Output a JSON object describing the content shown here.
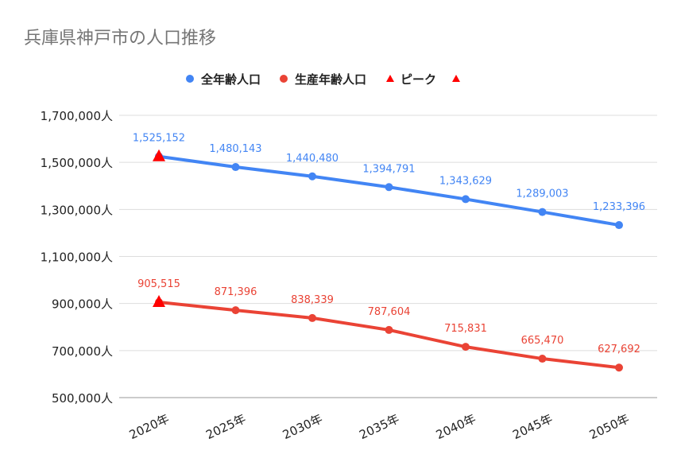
{
  "chart_data": {
    "type": "line",
    "title": "兵庫県神戸市の人口推移",
    "categories": [
      "2020年",
      "2025年",
      "2030年",
      "2035年",
      "2040年",
      "2045年",
      "2050年"
    ],
    "series": [
      {
        "name": "全年齢人口",
        "color": "#4285f4",
        "values": [
          1525152,
          1480143,
          1440480,
          1394791,
          1343629,
          1289003,
          1233396
        ],
        "labels": [
          "1,525,152",
          "1,480,143",
          "1,440,480",
          "1,394,791",
          "1,343,629",
          "1,289,003",
          "1,233,396"
        ]
      },
      {
        "name": "生産年齢人口",
        "color": "#ea4335",
        "values": [
          905515,
          871396,
          838339,
          787604,
          715831,
          665470,
          627692
        ],
        "labels": [
          "905,515",
          "871,396",
          "838,339",
          "787,604",
          "715,831",
          "665,470",
          "627,692"
        ]
      }
    ],
    "peaks": [
      {
        "name": "ピーク",
        "category": "2020年",
        "value": 1525152,
        "color": "#ff0000",
        "marker": "triangle"
      },
      {
        "name": "",
        "category": "2020年",
        "value": 905515,
        "color": "#ff0000",
        "marker": "triangle"
      }
    ],
    "ylim": [
      500000,
      1700000
    ],
    "yticks": [
      500000,
      700000,
      900000,
      1100000,
      1300000,
      1500000,
      1700000
    ],
    "ytick_labels": [
      "500,000人",
      "700,000人",
      "900,000人",
      "1,100,000人",
      "1,300,000人",
      "1,500,000人",
      "1,700,000人"
    ],
    "grid": true,
    "legend_position": "top",
    "xlabel": "",
    "ylabel": ""
  }
}
